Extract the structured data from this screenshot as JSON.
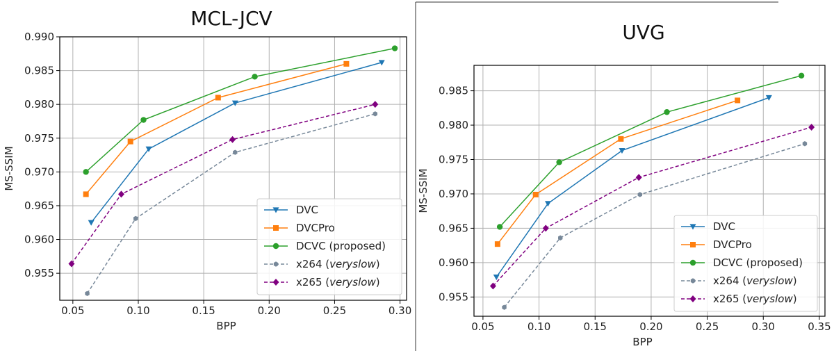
{
  "chart_data": [
    {
      "type": "line",
      "title": "MCL-JCV",
      "xlabel": "BPP",
      "ylabel": "MS-SSIM",
      "xlim": [
        0.04,
        0.305
      ],
      "ylim": [
        0.951,
        0.99
      ],
      "xticks": [
        "0.05",
        "0.10",
        "0.15",
        "0.20",
        "0.25",
        "0.30"
      ],
      "yticks": [
        "0.955",
        "0.960",
        "0.965",
        "0.970",
        "0.975",
        "0.980",
        "0.985",
        "0.990"
      ],
      "grid": true,
      "legend_position": "bottom-right",
      "series": [
        {
          "name": "DVC",
          "color": "#1f77b4",
          "marker": "triangle-down",
          "dashed": false,
          "x": [
            0.064,
            0.108,
            0.174,
            0.286
          ],
          "y": [
            0.9625,
            0.9734,
            0.9802,
            0.9862
          ]
        },
        {
          "name": "DVCPro",
          "color": "#ff7f0e",
          "marker": "square",
          "dashed": false,
          "x": [
            0.06,
            0.094,
            0.161,
            0.259
          ],
          "y": [
            0.9667,
            0.9745,
            0.981,
            0.986
          ]
        },
        {
          "name": "DCVC (proposed)",
          "color": "#2ca02c",
          "marker": "circle",
          "dashed": false,
          "x": [
            0.06,
            0.104,
            0.189,
            0.296
          ],
          "y": [
            0.97,
            0.9777,
            0.9841,
            0.9883
          ]
        },
        {
          "name": "x264 (veryslow)",
          "name_prefix": "x264 (",
          "name_italic": "veryslow",
          "name_suffix": ")",
          "color": "#778899",
          "marker": "hexagon",
          "dashed": true,
          "x": [
            0.061,
            0.098,
            0.174,
            0.281
          ],
          "y": [
            0.952,
            0.9631,
            0.9729,
            0.9786
          ]
        },
        {
          "name": "x265 (veryslow)",
          "name_prefix": "x265 (",
          "name_italic": "veryslow",
          "name_suffix": ")",
          "color": "#800080",
          "marker": "diamond",
          "dashed": true,
          "x": [
            0.049,
            0.087,
            0.172,
            0.281
          ],
          "y": [
            0.9564,
            0.9667,
            0.9748,
            0.98
          ]
        }
      ]
    },
    {
      "type": "line",
      "title": "UVG",
      "xlabel": "BPP",
      "ylabel": "MS-SSIM",
      "xlim": [
        0.042,
        0.355
      ],
      "ylim": [
        0.9522,
        0.9887
      ],
      "xticks": [
        "0.05",
        "0.10",
        "0.15",
        "0.20",
        "0.25",
        "0.30",
        "0.35"
      ],
      "yticks": [
        "0.955",
        "0.960",
        "0.965",
        "0.970",
        "0.975",
        "0.980",
        "0.985"
      ],
      "grid": true,
      "legend_position": "bottom-right",
      "series": [
        {
          "name": "DVC",
          "color": "#1f77b4",
          "marker": "triangle-down",
          "dashed": false,
          "x": [
            0.062,
            0.108,
            0.174,
            0.305
          ],
          "y": [
            0.9579,
            0.9686,
            0.9763,
            0.984
          ]
        },
        {
          "name": "DVCPro",
          "color": "#ff7f0e",
          "marker": "square",
          "dashed": false,
          "x": [
            0.063,
            0.097,
            0.173,
            0.277
          ],
          "y": [
            0.9627,
            0.9699,
            0.978,
            0.9836
          ]
        },
        {
          "name": "DCVC (proposed)",
          "color": "#2ca02c",
          "marker": "circle",
          "dashed": false,
          "x": [
            0.065,
            0.118,
            0.214,
            0.334
          ],
          "y": [
            0.9652,
            0.9746,
            0.9819,
            0.9872
          ]
        },
        {
          "name": "x264 (veryslow)",
          "name_prefix": "x264 (",
          "name_italic": "veryslow",
          "name_suffix": ")",
          "color": "#778899",
          "marker": "hexagon",
          "dashed": true,
          "x": [
            0.069,
            0.119,
            0.19,
            0.337
          ],
          "y": [
            0.9535,
            0.9636,
            0.9699,
            0.9773
          ]
        },
        {
          "name": "x265 (veryslow)",
          "name_prefix": "x265 (",
          "name_italic": "veryslow",
          "name_suffix": ")",
          "color": "#800080",
          "marker": "diamond",
          "dashed": true,
          "x": [
            0.059,
            0.106,
            0.189,
            0.343
          ],
          "y": [
            0.9566,
            0.965,
            0.9724,
            0.9797
          ]
        }
      ]
    }
  ]
}
